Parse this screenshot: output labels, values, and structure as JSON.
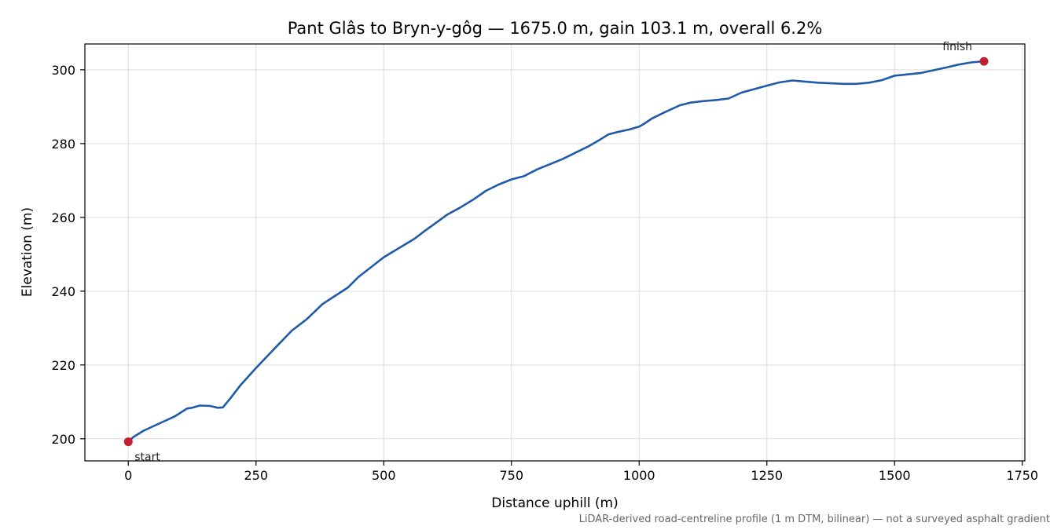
{
  "chart_data": {
    "type": "line",
    "title": "Pant Glâs to Bryn-y-gôg — 1675.0 m, gain 103.1 m, overall 6.2%",
    "xlabel": "Distance uphill (m)",
    "ylabel": "Elevation (m)",
    "xlim": [
      -85,
      1755
    ],
    "ylim": [
      194,
      307
    ],
    "xticks": [
      0,
      250,
      500,
      750,
      1000,
      1250,
      1500,
      1750
    ],
    "yticks": [
      200,
      220,
      240,
      260,
      280,
      300
    ],
    "grid": true,
    "legend": "none",
    "series": [
      {
        "color": "#1f5aa8",
        "x": [
          0,
          10,
          30,
          60,
          90,
          115,
          125,
          140,
          160,
          175,
          185,
          200,
          220,
          250,
          290,
          320,
          350,
          380,
          410,
          430,
          450,
          480,
          500,
          530,
          560,
          580,
          600,
          625,
          650,
          675,
          700,
          725,
          750,
          775,
          800,
          850,
          900,
          925,
          940,
          960,
          980,
          1000,
          1010,
          1025,
          1050,
          1080,
          1100,
          1125,
          1150,
          1175,
          1200,
          1250,
          1275,
          1300,
          1325,
          1350,
          1400,
          1425,
          1450,
          1475,
          1500,
          1550,
          1600,
          1625,
          1650,
          1675
        ],
        "y": [
          199.2,
          200.5,
          202.2,
          204.1,
          206.0,
          208.2,
          208.4,
          209.0,
          208.9,
          208.4,
          208.5,
          211.0,
          214.6,
          219.2,
          225.0,
          229.3,
          232.5,
          236.5,
          239.2,
          241.0,
          243.8,
          247.0,
          249.2,
          251.7,
          254.2,
          256.3,
          258.3,
          260.8,
          262.7,
          264.8,
          267.2,
          268.9,
          270.3,
          271.2,
          273.0,
          275.8,
          279.2,
          281.2,
          282.5,
          283.2,
          283.8,
          284.6,
          285.4,
          286.8,
          288.5,
          290.4,
          291.1,
          291.5,
          291.8,
          292.2,
          293.8,
          295.7,
          296.6,
          297.1,
          296.8,
          296.5,
          296.2,
          296.2,
          296.5,
          297.2,
          298.4,
          299.1,
          300.6,
          301.4,
          302.0,
          302.3
        ]
      }
    ],
    "markers": [
      {
        "x": 0,
        "y": 199.2,
        "label": "start",
        "color": "#c0202e"
      },
      {
        "x": 1675,
        "y": 302.3,
        "label": "finish",
        "color": "#c0202e"
      }
    ],
    "footnote": "LiDAR-derived road-centreline profile (1 m DTM, bilinear) — not a surveyed asphalt gradient"
  }
}
